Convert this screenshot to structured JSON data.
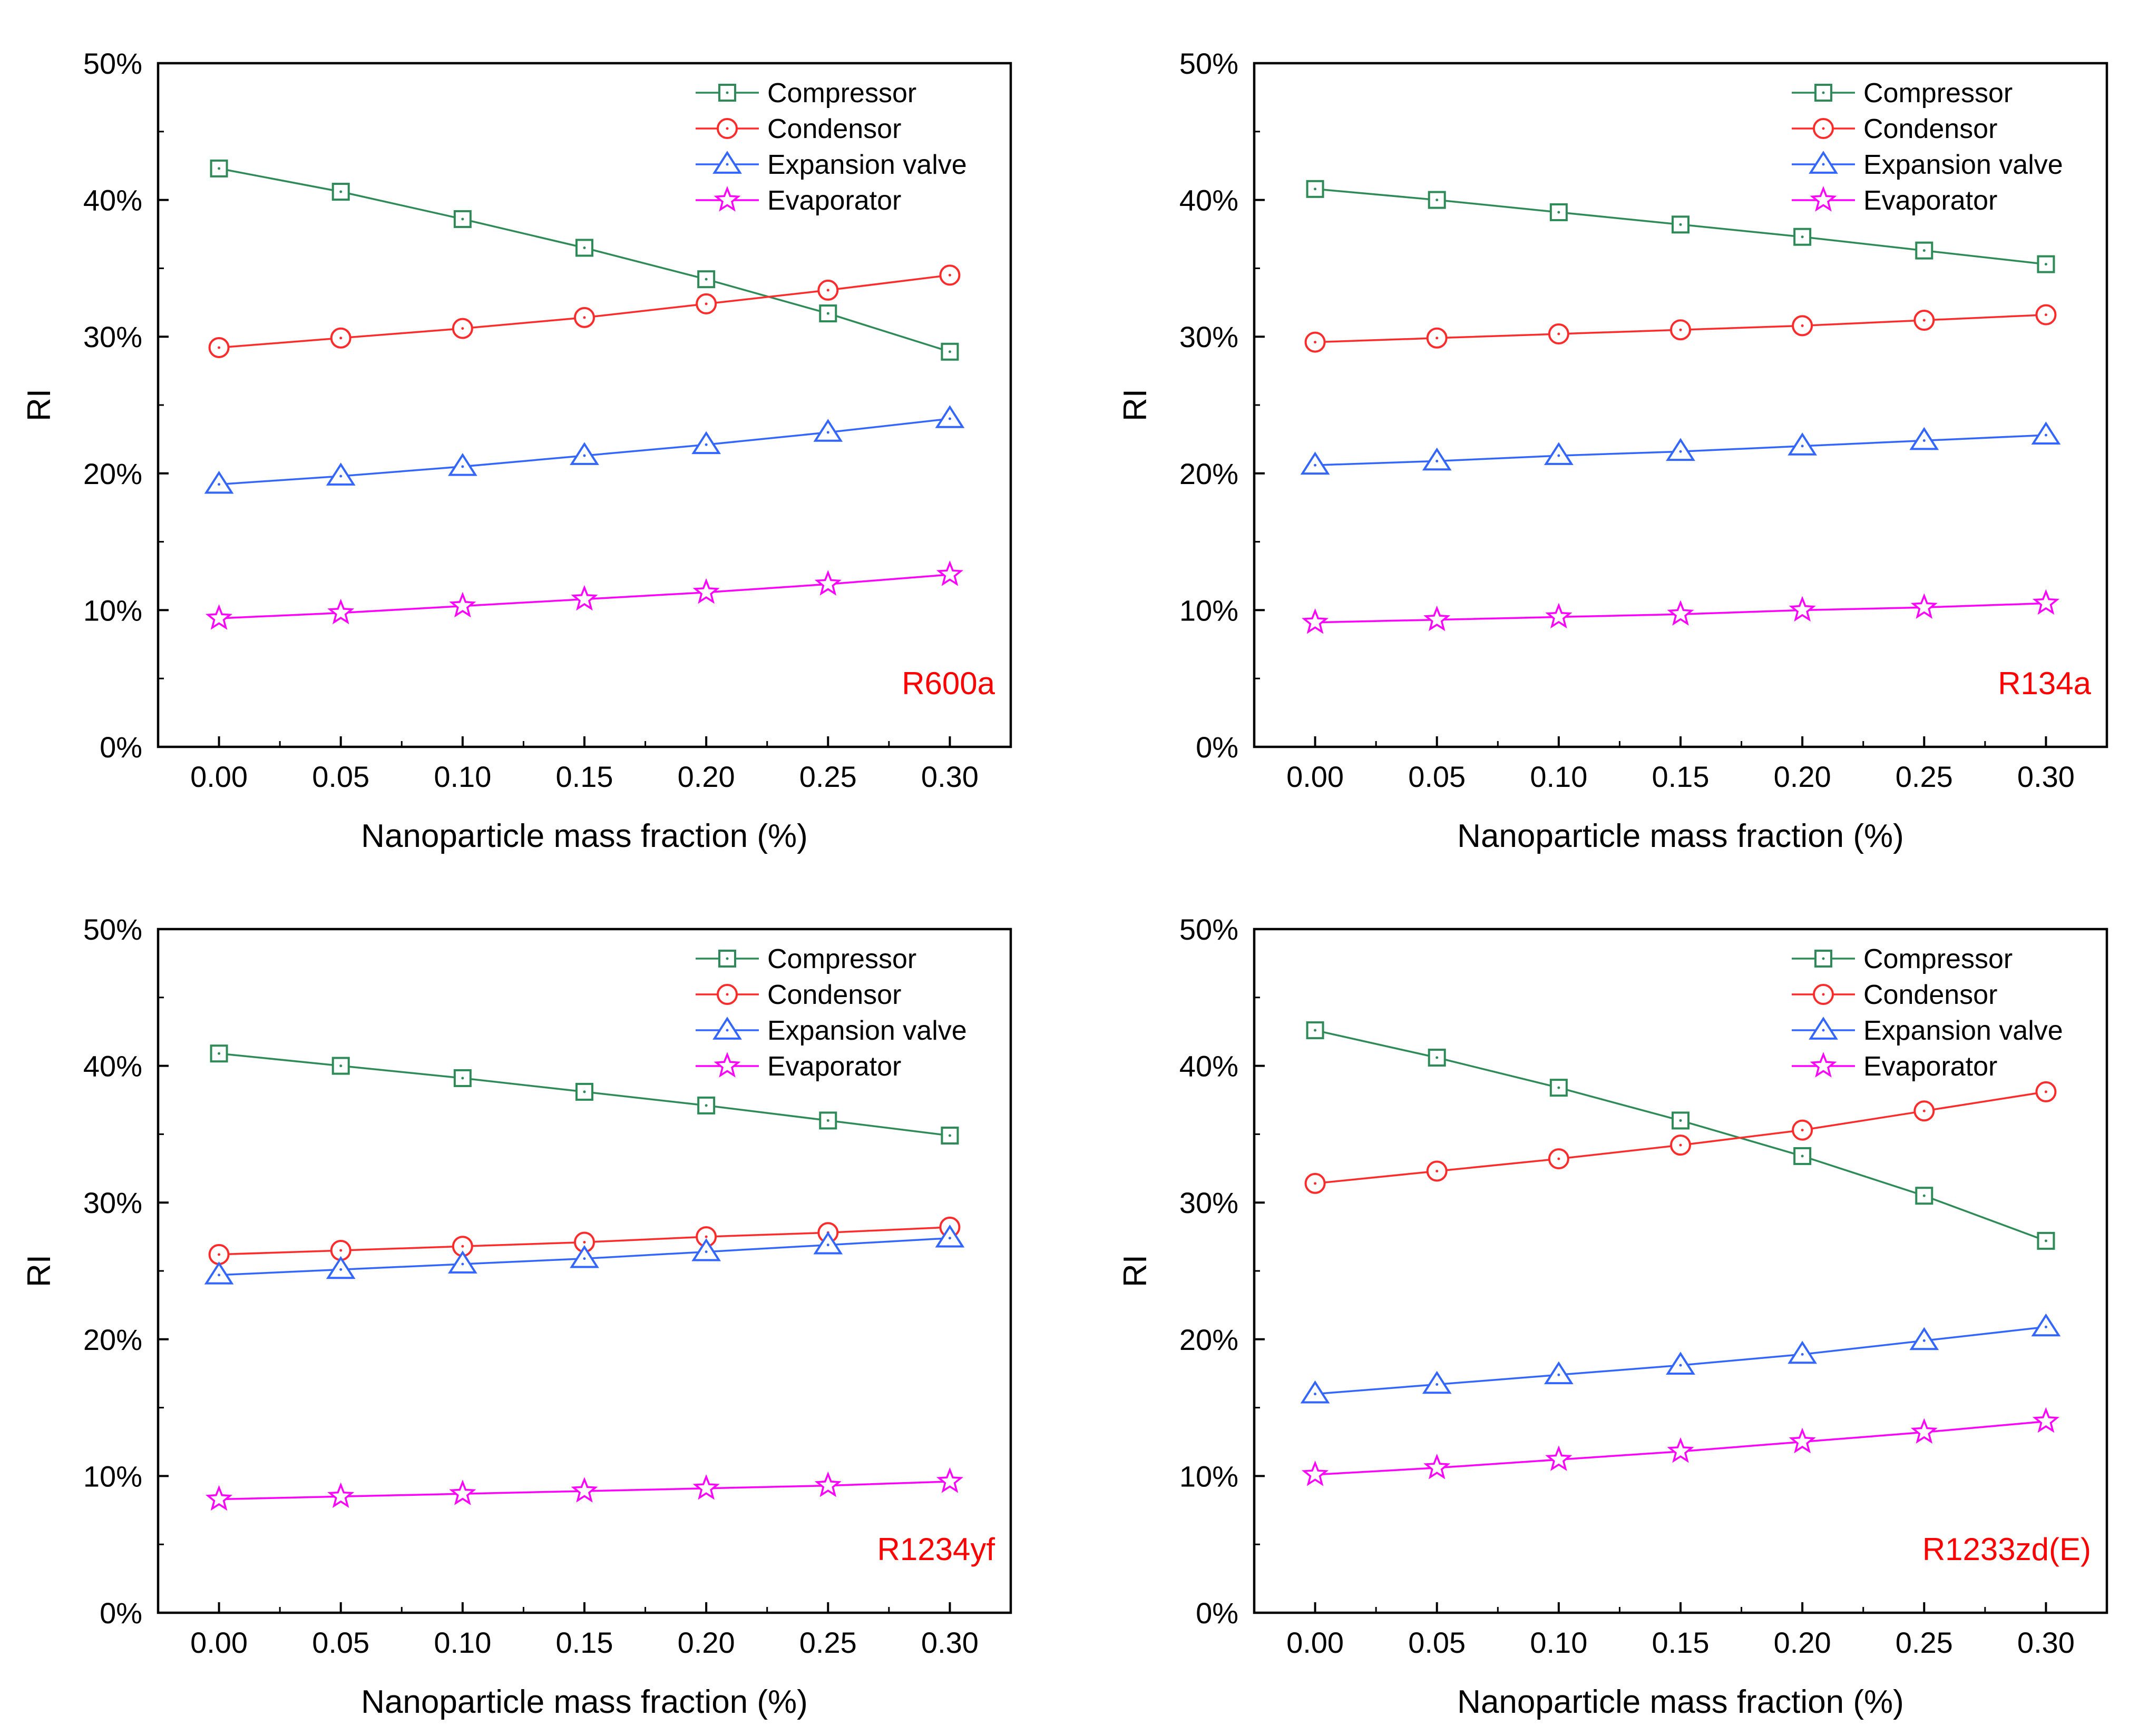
{
  "chart_data": [
    {
      "type": "line",
      "annotation": "R600a",
      "annotation_color": "#ff0000",
      "xlabel": "Nanoparticle mass fraction (%)",
      "ylabel": "RI",
      "x": [
        0.0,
        0.05,
        0.1,
        0.15,
        0.2,
        0.25,
        0.3
      ],
      "x_tick_labels": [
        "0.00",
        "0.05",
        "0.10",
        "0.15",
        "0.20",
        "0.25",
        "0.30"
      ],
      "xlim": [
        -0.025,
        0.325
      ],
      "y_tick_labels": [
        "0%",
        "10%",
        "20%",
        "30%",
        "40%",
        "50%"
      ],
      "ylim": [
        0,
        50
      ],
      "legend_position": "top-right",
      "series": [
        {
          "name": "Compressor",
          "marker": "square",
          "color": "#2e8b57",
          "values": [
            42.3,
            40.6,
            38.6,
            36.5,
            34.2,
            31.7,
            28.9
          ]
        },
        {
          "name": "Condensor",
          "marker": "circle",
          "color": "#ff2b2b",
          "values": [
            29.2,
            29.9,
            30.6,
            31.4,
            32.4,
            33.4,
            34.5
          ]
        },
        {
          "name": "Expansion valve",
          "marker": "triangle",
          "color": "#3366ff",
          "values": [
            19.2,
            19.8,
            20.5,
            21.3,
            22.1,
            23.0,
            24.0
          ]
        },
        {
          "name": "Evaporator",
          "marker": "star",
          "color": "#ff00ff",
          "values": [
            9.4,
            9.8,
            10.3,
            10.8,
            11.3,
            11.9,
            12.6
          ]
        }
      ]
    },
    {
      "type": "line",
      "annotation": "R134a",
      "annotation_color": "#ff0000",
      "xlabel": "Nanoparticle mass fraction (%)",
      "ylabel": "RI",
      "x": [
        0.0,
        0.05,
        0.1,
        0.15,
        0.2,
        0.25,
        0.3
      ],
      "x_tick_labels": [
        "0.00",
        "0.05",
        "0.10",
        "0.15",
        "0.20",
        "0.25",
        "0.30"
      ],
      "xlim": [
        -0.025,
        0.325
      ],
      "y_tick_labels": [
        "0%",
        "10%",
        "20%",
        "30%",
        "40%",
        "50%"
      ],
      "ylim": [
        0,
        50
      ],
      "legend_position": "top-right",
      "series": [
        {
          "name": "Compressor",
          "marker": "square",
          "color": "#2e8b57",
          "values": [
            40.8,
            40.0,
            39.1,
            38.2,
            37.3,
            36.3,
            35.3
          ]
        },
        {
          "name": "Condensor",
          "marker": "circle",
          "color": "#ff2b2b",
          "values": [
            29.6,
            29.9,
            30.2,
            30.5,
            30.8,
            31.2,
            31.6
          ]
        },
        {
          "name": "Expansion valve",
          "marker": "triangle",
          "color": "#3366ff",
          "values": [
            20.6,
            20.9,
            21.3,
            21.6,
            22.0,
            22.4,
            22.8
          ]
        },
        {
          "name": "Evaporator",
          "marker": "star",
          "color": "#ff00ff",
          "values": [
            9.1,
            9.3,
            9.5,
            9.7,
            10.0,
            10.2,
            10.5
          ]
        }
      ]
    },
    {
      "type": "line",
      "annotation": "R1234yf",
      "annotation_color": "#ff0000",
      "xlabel": "Nanoparticle mass fraction (%)",
      "ylabel": "RI",
      "x": [
        0.0,
        0.05,
        0.1,
        0.15,
        0.2,
        0.25,
        0.3
      ],
      "x_tick_labels": [
        "0.00",
        "0.05",
        "0.10",
        "0.15",
        "0.20",
        "0.25",
        "0.30"
      ],
      "xlim": [
        -0.025,
        0.325
      ],
      "y_tick_labels": [
        "0%",
        "10%",
        "20%",
        "30%",
        "40%",
        "50%"
      ],
      "ylim": [
        0,
        50
      ],
      "legend_position": "top-right",
      "series": [
        {
          "name": "Compressor",
          "marker": "square",
          "color": "#2e8b57",
          "values": [
            40.9,
            40.0,
            39.1,
            38.1,
            37.1,
            36.0,
            34.9
          ]
        },
        {
          "name": "Condensor",
          "marker": "circle",
          "color": "#ff2b2b",
          "values": [
            26.2,
            26.5,
            26.8,
            27.1,
            27.5,
            27.8,
            28.2
          ]
        },
        {
          "name": "Expansion valve",
          "marker": "triangle",
          "color": "#3366ff",
          "values": [
            24.7,
            25.1,
            25.5,
            25.9,
            26.4,
            26.9,
            27.4
          ]
        },
        {
          "name": "Evaporator",
          "marker": "star",
          "color": "#ff00ff",
          "values": [
            8.3,
            8.5,
            8.7,
            8.9,
            9.1,
            9.3,
            9.6
          ]
        }
      ]
    },
    {
      "type": "line",
      "annotation": "R1233zd(E)",
      "annotation_color": "#ff0000",
      "xlabel": "Nanoparticle mass fraction (%)",
      "ylabel": "RI",
      "x": [
        0.0,
        0.05,
        0.1,
        0.15,
        0.2,
        0.25,
        0.3
      ],
      "x_tick_labels": [
        "0.00",
        "0.05",
        "0.10",
        "0.15",
        "0.20",
        "0.25",
        "0.30"
      ],
      "xlim": [
        -0.025,
        0.325
      ],
      "y_tick_labels": [
        "0%",
        "10%",
        "20%",
        "30%",
        "40%",
        "50%"
      ],
      "ylim": [
        0,
        50
      ],
      "legend_position": "top-right",
      "series": [
        {
          "name": "Compressor",
          "marker": "square",
          "color": "#2e8b57",
          "values": [
            42.6,
            40.6,
            38.4,
            36.0,
            33.4,
            30.5,
            27.2
          ]
        },
        {
          "name": "Condensor",
          "marker": "circle",
          "color": "#ff2b2b",
          "values": [
            31.4,
            32.3,
            33.2,
            34.2,
            35.3,
            36.7,
            38.1
          ]
        },
        {
          "name": "Expansion valve",
          "marker": "triangle",
          "color": "#3366ff",
          "values": [
            16.0,
            16.7,
            17.4,
            18.1,
            18.9,
            19.9,
            20.9
          ]
        },
        {
          "name": "Evaporator",
          "marker": "star",
          "color": "#ff00ff",
          "values": [
            10.1,
            10.6,
            11.2,
            11.8,
            12.5,
            13.2,
            14.0
          ]
        }
      ]
    }
  ]
}
